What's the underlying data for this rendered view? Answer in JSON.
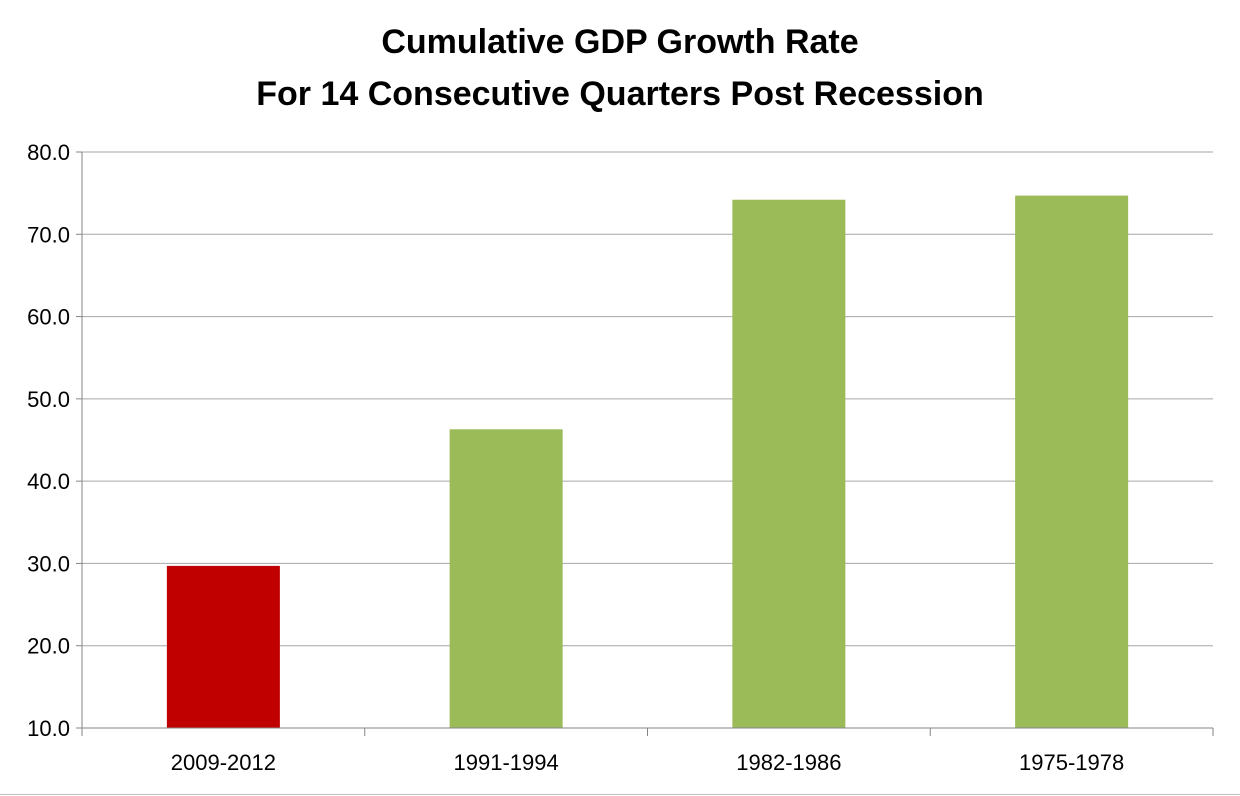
{
  "chart_data": {
    "type": "bar",
    "title": [
      "Cumulative GDP Growth Rate",
      "For 14 Consecutive Quarters Post Recession"
    ],
    "categories": [
      "2009-2012",
      "1991-1994",
      "1982-1986",
      "1975-1978"
    ],
    "values": [
      29.7,
      46.3,
      74.2,
      74.7
    ],
    "bar_colors": [
      "#C00000",
      "#9BBB59",
      "#9BBB59",
      "#9BBB59"
    ],
    "ylim": [
      10,
      80
    ],
    "yticks": [
      10,
      20,
      30,
      40,
      50,
      60,
      70,
      80
    ],
    "ytick_labels": [
      "10.0",
      "20.0",
      "30.0",
      "40.0",
      "50.0",
      "60.0",
      "70.0",
      "80.0"
    ],
    "grid": true,
    "gridline_color": "#A6A6A6",
    "xlabel": "",
    "ylabel": ""
  }
}
